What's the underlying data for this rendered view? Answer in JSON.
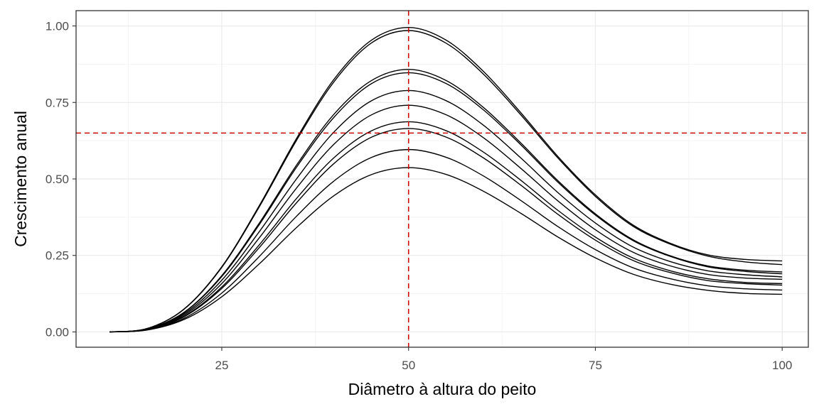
{
  "chart_data": {
    "type": "line",
    "title": "",
    "xlabel": "Diâmetro à altura do peito",
    "ylabel": "Crescimento anual",
    "xlim": [
      5.5,
      103.5
    ],
    "ylim": [
      -0.05,
      1.05
    ],
    "x_ticks": [
      25,
      50,
      75,
      100
    ],
    "x_tick_labels": [
      "25",
      "50",
      "75",
      "100"
    ],
    "y_ticks": [
      0,
      0.25,
      0.5,
      0.75,
      1.0
    ],
    "y_tick_labels": [
      "0.00",
      "0.25",
      "0.50",
      "0.75",
      "1.00"
    ],
    "grid": true,
    "legend": "none",
    "reference_lines": {
      "vertical_x": 50,
      "horizontal_y": 0.65,
      "color": "#cc0000",
      "style": "dashed"
    },
    "line_color": "#000000",
    "x": [
      10,
      15,
      20,
      25,
      30,
      35,
      40,
      45,
      50,
      55,
      60,
      65,
      70,
      75,
      80,
      85,
      90,
      95,
      100
    ],
    "series": [
      {
        "values": [
          0.0,
          0.011,
          0.076,
          0.213,
          0.412,
          0.632,
          0.825,
          0.953,
          0.995,
          0.954,
          0.852,
          0.717,
          0.573,
          0.448,
          0.35,
          0.29,
          0.252,
          0.237,
          0.232
        ]
      },
      {
        "values": [
          0.0,
          0.011,
          0.075,
          0.211,
          0.408,
          0.626,
          0.817,
          0.944,
          0.985,
          0.944,
          0.843,
          0.71,
          0.568,
          0.443,
          0.346,
          0.287,
          0.248,
          0.229,
          0.22
        ]
      },
      {
        "values": [
          0.0,
          0.01,
          0.065,
          0.184,
          0.355,
          0.545,
          0.711,
          0.821,
          0.858,
          0.822,
          0.734,
          0.618,
          0.494,
          0.386,
          0.302,
          0.249,
          0.216,
          0.202,
          0.196
        ]
      },
      {
        "values": [
          0.0,
          0.009,
          0.064,
          0.181,
          0.35,
          0.538,
          0.701,
          0.811,
          0.847,
          0.812,
          0.726,
          0.612,
          0.489,
          0.382,
          0.299,
          0.247,
          0.213,
          0.198,
          0.19
        ]
      },
      {
        "values": [
          0.0,
          0.009,
          0.06,
          0.169,
          0.327,
          0.5,
          0.653,
          0.755,
          0.789,
          0.756,
          0.676,
          0.569,
          0.455,
          0.356,
          0.278,
          0.23,
          0.2,
          0.187,
          0.18
        ]
      },
      {
        "values": [
          0.0,
          0.008,
          0.056,
          0.158,
          0.307,
          0.47,
          0.613,
          0.709,
          0.741,
          0.71,
          0.635,
          0.535,
          0.428,
          0.334,
          0.261,
          0.216,
          0.188,
          0.176,
          0.172
        ]
      },
      {
        "values": [
          0.0,
          0.008,
          0.052,
          0.147,
          0.284,
          0.436,
          0.569,
          0.657,
          0.687,
          0.658,
          0.588,
          0.496,
          0.397,
          0.31,
          0.242,
          0.2,
          0.174,
          0.162,
          0.158
        ]
      },
      {
        "values": [
          0.0,
          0.007,
          0.05,
          0.142,
          0.275,
          0.422,
          0.55,
          0.636,
          0.665,
          0.637,
          0.569,
          0.48,
          0.384,
          0.3,
          0.234,
          0.194,
          0.168,
          0.158,
          0.153
        ]
      },
      {
        "values": [
          0.0,
          0.007,
          0.045,
          0.127,
          0.246,
          0.378,
          0.493,
          0.57,
          0.596,
          0.571,
          0.51,
          0.43,
          0.344,
          0.269,
          0.21,
          0.174,
          0.151,
          0.141,
          0.137
        ]
      },
      {
        "values": [
          0.0,
          0.006,
          0.041,
          0.115,
          0.222,
          0.341,
          0.445,
          0.514,
          0.537,
          0.515,
          0.46,
          0.388,
          0.31,
          0.242,
          0.189,
          0.156,
          0.136,
          0.126,
          0.123
        ]
      }
    ]
  }
}
